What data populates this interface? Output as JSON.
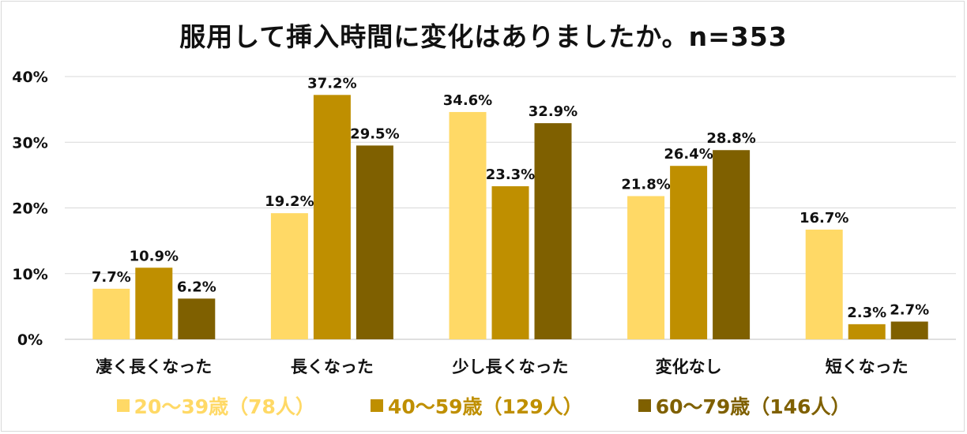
{
  "chart_data": {
    "type": "bar",
    "title": "服用して挿入時間に変化はありましたか。n=353",
    "categories": [
      "凄く長くなった",
      "長くなった",
      "少し長くなった",
      "変化なし",
      "短くなった"
    ],
    "series": [
      {
        "name": "20～39歳（78人）",
        "values": [
          7.7,
          19.2,
          34.6,
          21.8,
          16.7
        ],
        "color": "#ffd966"
      },
      {
        "name": "40～59歳（129人）",
        "values": [
          10.9,
          37.2,
          23.3,
          26.4,
          2.3
        ],
        "color": "#bf8f00"
      },
      {
        "name": "60～79歳（146人）",
        "values": [
          6.2,
          29.5,
          32.9,
          28.8,
          2.7
        ],
        "color": "#7f6000"
      }
    ],
    "value_labels": [
      [
        "7.7%",
        "19.2%",
        "34.6%",
        "21.8%",
        "16.7%"
      ],
      [
        "10.9%",
        "37.2%",
        "23.3%",
        "26.4%",
        "2.3%"
      ],
      [
        "6.2%",
        "29.5%",
        "32.9%",
        "28.8%",
        "2.7%"
      ]
    ],
    "yticks": [
      "0%",
      "10%",
      "20%",
      "30%",
      "40%"
    ],
    "ylim": [
      0,
      40
    ],
    "grid": true,
    "legend_position": "bottom",
    "xlabel": "",
    "ylabel": ""
  }
}
